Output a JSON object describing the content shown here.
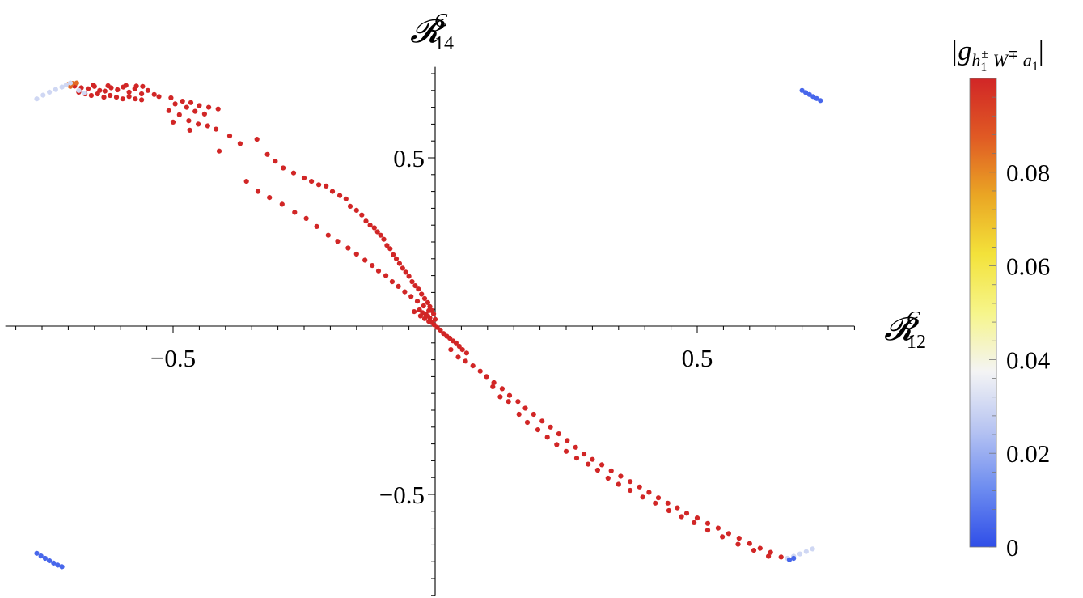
{
  "chart_data": {
    "type": "scatter",
    "x_label": {
      "main": "𝓡",
      "sup": "C",
      "sub": "12"
    },
    "y_label": {
      "main": "𝓡",
      "sup": "C",
      "sub": "14"
    },
    "x_ticks": [
      {
        "value": -0.5,
        "label": "−0.5"
      },
      {
        "value": 0.5,
        "label": "0.5"
      }
    ],
    "y_ticks": [
      {
        "value": 0.5,
        "label": "0.5"
      },
      {
        "value": -0.5,
        "label": "−0.5"
      }
    ],
    "xlim": [
      -0.82,
      0.8
    ],
    "ylim": [
      -0.8,
      0.77
    ],
    "colorbar": {
      "title": "|g_{h1± W∓ a1}|",
      "title_parts": {
        "open": "|g",
        "sub1": "h",
        "sub1_sub": "1",
        "sub1_sup": "±",
        "sub2": " W",
        "sub2_sup": "∓",
        "sub3": " a",
        "sub3_sub": "1",
        "close": "|"
      },
      "min": 0,
      "max": 0.1,
      "ticks": [
        {
          "value": 0,
          "label": "0"
        },
        {
          "value": 0.02,
          "label": "0.02"
        },
        {
          "value": 0.04,
          "label": "0.04"
        },
        {
          "value": 0.06,
          "label": "0.06"
        },
        {
          "value": 0.08,
          "label": "0.08"
        }
      ],
      "colors": [
        "#2f4ee8",
        "#6d8cf0",
        "#b7c4f2",
        "#f4f4f4",
        "#f6f58a",
        "#f3e23a",
        "#eaa624",
        "#e05a24",
        "#d12626"
      ]
    },
    "series": [
      {
        "color_value": 0.1,
        "points": [
          [
            -0.688,
            0.713
          ],
          [
            -0.675,
            0.708
          ],
          [
            -0.662,
            0.705
          ],
          [
            -0.65,
            0.712
          ],
          [
            -0.64,
            0.7
          ],
          [
            -0.63,
            0.698
          ],
          [
            -0.618,
            0.708
          ],
          [
            -0.606,
            0.702
          ],
          [
            -0.595,
            0.71
          ],
          [
            -0.584,
            0.695
          ],
          [
            -0.573,
            0.705
          ],
          [
            -0.56,
            0.69
          ],
          [
            -0.548,
            0.7
          ],
          [
            -0.536,
            0.688
          ],
          [
            -0.68,
            0.695
          ],
          [
            -0.668,
            0.69
          ],
          [
            -0.656,
            0.685
          ],
          [
            -0.644,
            0.69
          ],
          [
            -0.632,
            0.68
          ],
          [
            -0.62,
            0.685
          ],
          [
            -0.608,
            0.68
          ],
          [
            -0.596,
            0.675
          ],
          [
            -0.584,
            0.682
          ],
          [
            -0.572,
            0.675
          ],
          [
            -0.56,
            0.672
          ],
          [
            -0.652,
            0.716
          ],
          [
            -0.624,
            0.714
          ],
          [
            -0.59,
            0.715
          ],
          [
            -0.57,
            0.713
          ],
          [
            -0.558,
            0.712
          ],
          [
            -0.527,
            0.682
          ],
          [
            -0.504,
            0.678
          ],
          [
            -0.482,
            0.668
          ],
          [
            -0.466,
            0.664
          ],
          [
            -0.45,
            0.655
          ],
          [
            -0.432,
            0.65
          ],
          [
            -0.414,
            0.645
          ],
          [
            -0.496,
            0.66
          ],
          [
            -0.474,
            0.65
          ],
          [
            -0.458,
            0.638
          ],
          [
            -0.44,
            0.63
          ],
          [
            -0.508,
            0.64
          ],
          [
            -0.488,
            0.628
          ],
          [
            -0.47,
            0.61
          ],
          [
            -0.452,
            0.6
          ],
          [
            -0.434,
            0.595
          ],
          [
            -0.418,
            0.585
          ],
          [
            -0.5,
            0.606
          ],
          [
            -0.468,
            0.582
          ],
          [
            -0.412,
            0.52
          ],
          [
            -0.392,
            0.565
          ],
          [
            -0.372,
            0.542
          ],
          [
            -0.34,
            0.555
          ],
          [
            -0.32,
            0.51
          ],
          [
            -0.305,
            0.49
          ],
          [
            -0.29,
            0.47
          ],
          [
            -0.27,
            0.455
          ],
          [
            -0.25,
            0.44
          ],
          [
            -0.236,
            0.43
          ],
          [
            -0.222,
            0.42
          ],
          [
            -0.208,
            0.416
          ],
          [
            -0.196,
            0.4
          ],
          [
            -0.182,
            0.388
          ],
          [
            -0.17,
            0.378
          ],
          [
            -0.162,
            0.356
          ],
          [
            -0.15,
            0.344
          ],
          [
            -0.14,
            0.33
          ],
          [
            -0.132,
            0.312
          ],
          [
            -0.124,
            0.3
          ],
          [
            -0.116,
            0.292
          ],
          [
            -0.11,
            0.28
          ],
          [
            -0.104,
            0.27
          ],
          [
            -0.098,
            0.258
          ],
          [
            -0.092,
            0.24
          ],
          [
            -0.086,
            0.23
          ],
          [
            -0.08,
            0.212
          ],
          [
            -0.074,
            0.2
          ],
          [
            -0.068,
            0.186
          ],
          [
            -0.062,
            0.172
          ],
          [
            -0.056,
            0.16
          ],
          [
            -0.05,
            0.148
          ],
          [
            -0.044,
            0.132
          ],
          [
            -0.038,
            0.12
          ],
          [
            -0.032,
            0.11
          ],
          [
            -0.026,
            0.095
          ],
          [
            -0.02,
            0.082
          ],
          [
            -0.014,
            0.07
          ],
          [
            -0.01,
            0.058
          ],
          [
            -0.006,
            0.046
          ],
          [
            -0.003,
            0.036
          ],
          [
            0.0,
            0.02
          ],
          [
            -0.36,
            0.43
          ],
          [
            -0.338,
            0.4
          ],
          [
            -0.316,
            0.382
          ],
          [
            -0.292,
            0.362
          ],
          [
            -0.268,
            0.338
          ],
          [
            -0.246,
            0.32
          ],
          [
            -0.226,
            0.296
          ],
          [
            -0.204,
            0.27
          ],
          [
            -0.186,
            0.252
          ],
          [
            -0.166,
            0.232
          ],
          [
            -0.15,
            0.214
          ],
          [
            -0.134,
            0.196
          ],
          [
            -0.12,
            0.18
          ],
          [
            -0.108,
            0.164
          ],
          [
            -0.094,
            0.15
          ],
          [
            -0.082,
            0.132
          ],
          [
            -0.07,
            0.118
          ],
          [
            -0.058,
            0.102
          ],
          [
            -0.046,
            0.088
          ],
          [
            -0.034,
            0.074
          ],
          [
            -0.022,
            0.06
          ],
          [
            -0.012,
            0.046
          ],
          [
            -0.04,
            0.043
          ],
          [
            -0.03,
            0.048
          ],
          [
            -0.024,
            0.04
          ],
          [
            -0.018,
            0.036
          ],
          [
            -0.014,
            0.03
          ],
          [
            -0.01,
            0.024
          ],
          [
            -0.028,
            0.03
          ],
          [
            -0.02,
            0.022
          ],
          [
            -0.012,
            0.014
          ],
          [
            -0.006,
            0.01
          ],
          [
            -0.002,
            0.004
          ],
          [
            0.004,
            -0.004
          ],
          [
            0.01,
            -0.012
          ],
          [
            0.016,
            -0.022
          ],
          [
            0.022,
            -0.03
          ],
          [
            0.028,
            -0.036
          ],
          [
            0.034,
            -0.044
          ],
          [
            0.04,
            -0.05
          ],
          [
            0.046,
            -0.06
          ],
          [
            0.052,
            -0.07
          ],
          [
            0.06,
            -0.08
          ],
          [
            0.03,
            -0.07
          ],
          [
            0.044,
            -0.092
          ],
          [
            0.058,
            -0.104
          ],
          [
            0.072,
            -0.118
          ],
          [
            0.086,
            -0.134
          ],
          [
            0.098,
            -0.15
          ],
          [
            0.112,
            -0.168
          ],
          [
            0.128,
            -0.186
          ],
          [
            0.142,
            -0.206
          ],
          [
            0.158,
            -0.224
          ],
          [
            0.172,
            -0.244
          ],
          [
            0.188,
            -0.262
          ],
          [
            0.204,
            -0.282
          ],
          [
            0.22,
            -0.3
          ],
          [
            0.236,
            -0.32
          ],
          [
            0.252,
            -0.34
          ],
          [
            0.268,
            -0.36
          ],
          [
            0.284,
            -0.38
          ],
          [
            0.3,
            -0.396
          ],
          [
            0.318,
            -0.412
          ],
          [
            0.336,
            -0.43
          ],
          [
            0.354,
            -0.446
          ],
          [
            0.372,
            -0.462
          ],
          [
            0.39,
            -0.478
          ],
          [
            0.408,
            -0.494
          ],
          [
            0.426,
            -0.51
          ],
          [
            0.444,
            -0.526
          ],
          [
            0.462,
            -0.54
          ],
          [
            0.48,
            -0.556
          ],
          [
            0.5,
            -0.57
          ],
          [
            0.52,
            -0.586
          ],
          [
            0.54,
            -0.6
          ],
          [
            0.56,
            -0.616
          ],
          [
            0.58,
            -0.63
          ],
          [
            0.6,
            -0.646
          ],
          [
            0.62,
            -0.66
          ],
          [
            0.64,
            -0.672
          ],
          [
            0.66,
            -0.686
          ],
          [
            0.11,
            -0.18
          ],
          [
            0.124,
            -0.21
          ],
          [
            0.14,
            -0.224
          ],
          [
            0.16,
            -0.262
          ],
          [
            0.176,
            -0.286
          ],
          [
            0.196,
            -0.308
          ],
          [
            0.214,
            -0.33
          ],
          [
            0.232,
            -0.352
          ],
          [
            0.25,
            -0.372
          ],
          [
            0.27,
            -0.392
          ],
          [
            0.292,
            -0.41
          ],
          [
            0.31,
            -0.428
          ],
          [
            0.33,
            -0.452
          ],
          [
            0.35,
            -0.47
          ],
          [
            0.372,
            -0.488
          ],
          [
            0.396,
            -0.508
          ],
          [
            0.42,
            -0.526
          ],
          [
            0.446,
            -0.548
          ],
          [
            0.47,
            -0.566
          ],
          [
            0.494,
            -0.584
          ],
          [
            0.52,
            -0.606
          ],
          [
            0.548,
            -0.626
          ],
          [
            0.578,
            -0.648
          ],
          [
            0.608,
            -0.666
          ],
          [
            0.636,
            -0.684
          ]
        ]
      },
      {
        "color_value": 0.085,
        "points": [
          [
            -0.7,
            0.718
          ],
          [
            -0.692,
            0.721
          ],
          [
            -0.684,
            0.722
          ],
          [
            -0.696,
            0.712
          ]
        ]
      },
      {
        "color_value": 0.03,
        "points": [
          [
            -0.76,
            0.675
          ],
          [
            -0.748,
            0.686
          ],
          [
            -0.736,
            0.695
          ],
          [
            -0.724,
            0.703
          ],
          [
            -0.712,
            0.71
          ],
          [
            -0.704,
            0.716
          ],
          [
            -0.696,
            0.722
          ],
          [
            -0.68,
            0.7
          ],
          [
            -0.67,
            0.692
          ],
          [
            0.672,
            -0.69
          ],
          [
            0.684,
            -0.684
          ],
          [
            0.696,
            -0.677
          ],
          [
            0.708,
            -0.67
          ],
          [
            0.72,
            -0.662
          ]
        ]
      },
      {
        "color_value": 0.005,
        "points": [
          [
            0.7,
            0.7
          ],
          [
            0.707,
            0.694
          ],
          [
            0.714,
            0.688
          ],
          [
            0.721,
            0.682
          ],
          [
            0.728,
            0.676
          ],
          [
            0.735,
            0.67
          ],
          [
            -0.76,
            -0.675
          ],
          [
            -0.752,
            -0.683
          ],
          [
            -0.744,
            -0.69
          ],
          [
            -0.736,
            -0.697
          ],
          [
            -0.728,
            -0.704
          ],
          [
            -0.72,
            -0.71
          ],
          [
            -0.712,
            -0.715
          ],
          [
            0.676,
            -0.694
          ],
          [
            0.684,
            -0.69
          ]
        ]
      }
    ]
  }
}
